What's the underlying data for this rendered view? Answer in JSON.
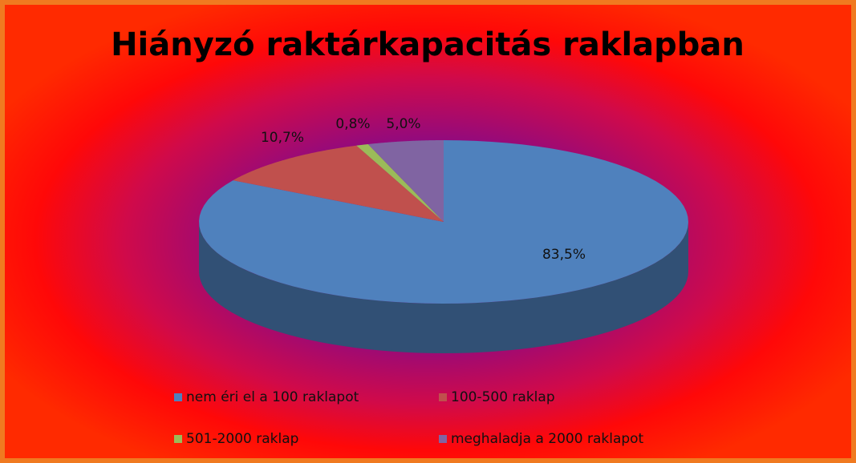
{
  "chart_data": {
    "type": "pie3d",
    "title": "Hiányzó raktárkapacitás raklapban",
    "categories": [
      "nem éri el a 100 raklapot",
      "100-500 raklap",
      "501-2000 raklap",
      "meghaladja a 2000 raklapot"
    ],
    "values": [
      83.5,
      10.7,
      0.8,
      5.0
    ],
    "value_labels": [
      "83,5%",
      "10,7%",
      "0,8%",
      "5,0%"
    ],
    "colors": [
      "#4f81bd",
      "#c0504d",
      "#9bbb59",
      "#8064a2"
    ]
  }
}
